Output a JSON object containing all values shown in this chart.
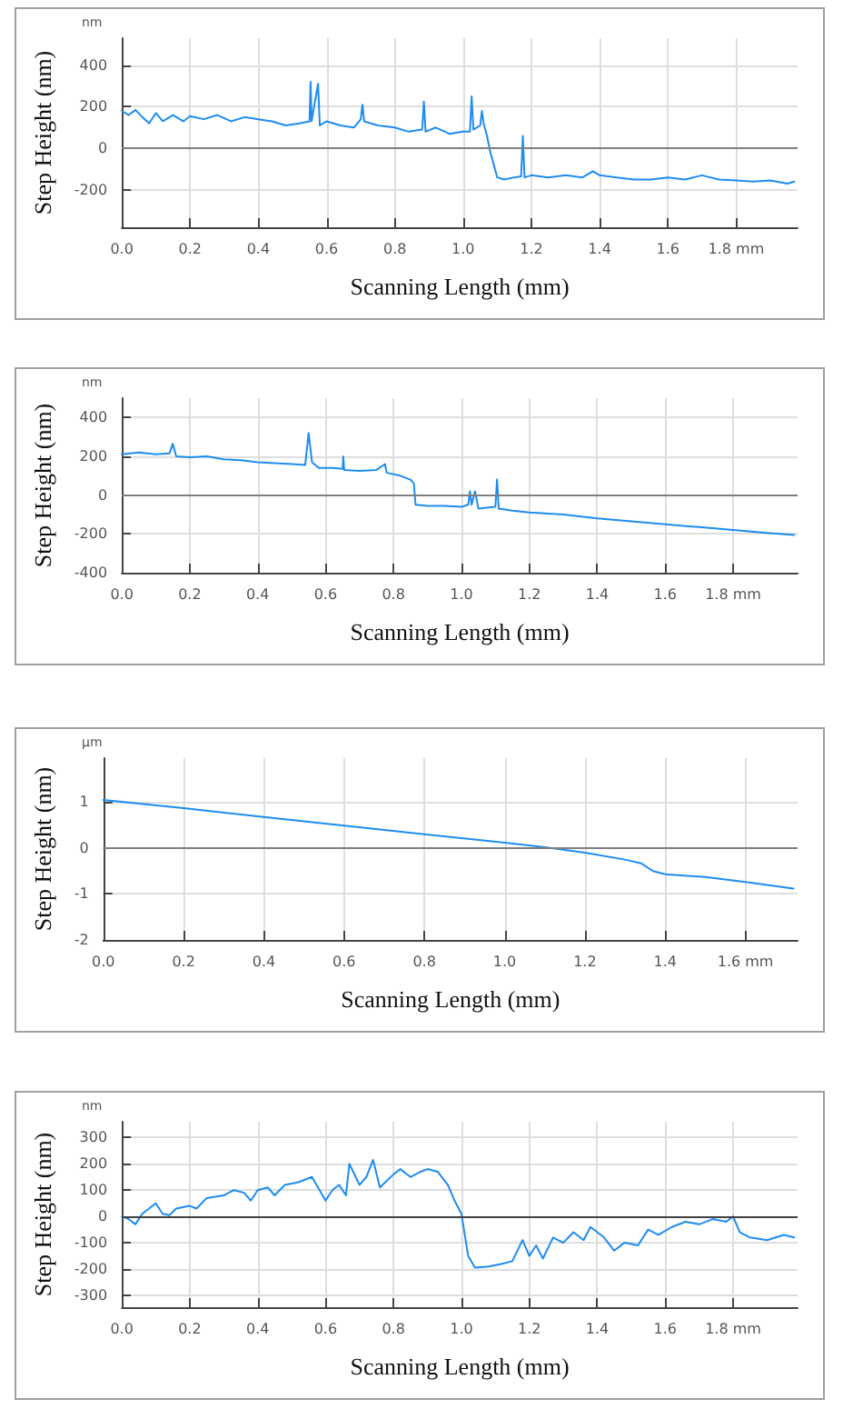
{
  "chart_data": [
    {
      "type": "line",
      "xlabel": "Scanning Length (mm)",
      "ylabel": "Step Height (nm)",
      "annotations": [
        "nm"
      ],
      "xlim": [
        0,
        1.98
      ],
      "ylim": [
        -380,
        530
      ],
      "xticks": [
        {
          "value": 0,
          "label": "0.0"
        },
        {
          "value": 0.2,
          "label": "0.2"
        },
        {
          "value": 0.4,
          "label": "0.4"
        },
        {
          "value": 0.6,
          "label": "0.6"
        },
        {
          "value": 0.8,
          "label": "0.8"
        },
        {
          "value": 1,
          "label": "1.0"
        },
        {
          "value": 1.2,
          "label": "1.2"
        },
        {
          "value": 1.4,
          "label": "1.4"
        },
        {
          "value": 1.6,
          "label": "1.6"
        },
        {
          "value": 1.8,
          "label": "1.8 mm"
        }
      ],
      "yticks": [
        -200,
        0,
        200,
        400
      ],
      "grid": true,
      "marker": "none",
      "line_style": "solid",
      "ref_lines": [
        {
          "axis": "y",
          "value": 0,
          "color": "#7f7f7f"
        }
      ],
      "series": [
        {
          "color": "#1e8cf0",
          "x": [
            0,
            0.02,
            0.04,
            0.06,
            0.08,
            0.1,
            0.12,
            0.15,
            0.18,
            0.2,
            0.24,
            0.28,
            0.32,
            0.36,
            0.4,
            0.44,
            0.48,
            0.52,
            0.55,
            0.553,
            0.556,
            0.575,
            0.58,
            0.6,
            0.64,
            0.68,
            0.7,
            0.705,
            0.71,
            0.75,
            0.8,
            0.84,
            0.88,
            0.885,
            0.89,
            0.92,
            0.96,
            1,
            1.02,
            1.025,
            1.03,
            1.05,
            1.055,
            1.06,
            1.07,
            1.08,
            1.1,
            1.12,
            1.15,
            1.17,
            1.175,
            1.18,
            1.2,
            1.25,
            1.3,
            1.35,
            1.38,
            1.4,
            1.45,
            1.5,
            1.55,
            1.6,
            1.65,
            1.7,
            1.75,
            1.8,
            1.85,
            1.9,
            1.95,
            1.97
          ],
          "values": [
            180,
            160,
            185,
            150,
            120,
            170,
            130,
            160,
            130,
            155,
            140,
            160,
            130,
            150,
            140,
            130,
            110,
            120,
            130,
            320,
            130,
            310,
            110,
            130,
            110,
            100,
            140,
            210,
            130,
            110,
            100,
            80,
            90,
            225,
            80,
            100,
            70,
            80,
            80,
            250,
            90,
            110,
            180,
            120,
            60,
            -20,
            -140,
            -150,
            -140,
            -135,
            60,
            -140,
            -130,
            -140,
            -130,
            -140,
            -110,
            -130,
            -140,
            -150,
            -150,
            -140,
            -150,
            -130,
            -150,
            -155,
            -160,
            -155,
            -170,
            -160
          ]
        }
      ]
    },
    {
      "type": "line",
      "xlabel": "Scanning Length (mm)",
      "ylabel": "Step Height (nm)",
      "annotations": [
        "nm"
      ],
      "xlim": [
        0,
        1.99
      ],
      "ylim": [
        -400,
        500
      ],
      "xticks": [
        {
          "value": 0,
          "label": "0.0"
        },
        {
          "value": 0.2,
          "label": "0.2"
        },
        {
          "value": 0.4,
          "label": "0.4"
        },
        {
          "value": 0.6,
          "label": "0.6"
        },
        {
          "value": 0.8,
          "label": "0.8"
        },
        {
          "value": 1,
          "label": "1.0"
        },
        {
          "value": 1.2,
          "label": "1.2"
        },
        {
          "value": 1.4,
          "label": "1.4"
        },
        {
          "value": 1.6,
          "label": "1.6"
        },
        {
          "value": 1.8,
          "label": "1.8 mm"
        }
      ],
      "yticks": [
        -400,
        -200,
        0,
        200,
        400
      ],
      "grid": true,
      "marker": "none",
      "line_style": "solid",
      "ref_lines": [
        {
          "axis": "y",
          "value": 0,
          "color": "#7f7f7f"
        }
      ],
      "series": [
        {
          "color": "#1e8cf0",
          "x": [
            0,
            0.05,
            0.1,
            0.14,
            0.15,
            0.16,
            0.2,
            0.25,
            0.3,
            0.35,
            0.4,
            0.45,
            0.5,
            0.54,
            0.55,
            0.56,
            0.58,
            0.62,
            0.65,
            0.652,
            0.655,
            0.7,
            0.75,
            0.775,
            0.78,
            0.82,
            0.85,
            0.86,
            0.865,
            0.9,
            0.95,
            1,
            1.02,
            1.025,
            1.03,
            1.04,
            1.05,
            1.1,
            1.105,
            1.11,
            1.15,
            1.2,
            1.3,
            1.4,
            1.5,
            1.6,
            1.7,
            1.8,
            1.9,
            1.98
          ],
          "values": [
            210,
            220,
            210,
            215,
            265,
            200,
            195,
            200,
            185,
            180,
            170,
            165,
            160,
            155,
            320,
            170,
            140,
            140,
            135,
            200,
            130,
            125,
            130,
            160,
            115,
            100,
            80,
            60,
            -50,
            -55,
            -55,
            -60,
            -50,
            20,
            -50,
            20,
            -70,
            -60,
            80,
            -70,
            -80,
            -90,
            -100,
            -120,
            -135,
            -150,
            -165,
            -180,
            -195,
            -205
          ]
        }
      ]
    },
    {
      "type": "line",
      "xlabel": "Scanning Length (mm)",
      "ylabel": "Step Height (nm)",
      "annotations": [
        "µm"
      ],
      "xlim": [
        0,
        1.73
      ],
      "ylim": [
        -2,
        1.96
      ],
      "xticks": [
        {
          "value": 0,
          "label": "0.0"
        },
        {
          "value": 0.2,
          "label": "0.2"
        },
        {
          "value": 0.4,
          "label": "0.4"
        },
        {
          "value": 0.6,
          "label": "0.6"
        },
        {
          "value": 0.8,
          "label": "0.8"
        },
        {
          "value": 1,
          "label": "1.0"
        },
        {
          "value": 1.2,
          "label": "1.2"
        },
        {
          "value": 1.4,
          "label": "1.4"
        },
        {
          "value": 1.6,
          "label": "1.6 mm"
        }
      ],
      "yticks": [
        -2,
        -1,
        0,
        1
      ],
      "grid": true,
      "marker": "none",
      "line_style": "solid",
      "ref_lines": [
        {
          "axis": "y",
          "value": 0,
          "color": "#7f7f7f"
        }
      ],
      "series": [
        {
          "color": "#1e8cf0",
          "x": [
            0,
            0.2,
            0.4,
            0.6,
            0.8,
            1,
            1.1,
            1.2,
            1.3,
            1.34,
            1.37,
            1.4,
            1.5,
            1.6,
            1.72
          ],
          "values": [
            1.05,
            0.87,
            0.68,
            0.49,
            0.3,
            0.12,
            0.02,
            -0.1,
            -0.25,
            -0.33,
            -0.5,
            -0.57,
            -0.63,
            -0.74,
            -0.88
          ]
        }
      ]
    },
    {
      "type": "line",
      "xlabel": "Scanning Length (mm)",
      "ylabel": "Step Height (nm)",
      "annotations": [
        "nm"
      ],
      "xlim": [
        0,
        1.99
      ],
      "ylim": [
        -345,
        360
      ],
      "xticks": [
        {
          "value": 0,
          "label": "0.0"
        },
        {
          "value": 0.2,
          "label": "0.2"
        },
        {
          "value": 0.4,
          "label": "0.4"
        },
        {
          "value": 0.6,
          "label": "0.6"
        },
        {
          "value": 0.8,
          "label": "0.8"
        },
        {
          "value": 1,
          "label": "1.0"
        },
        {
          "value": 1.2,
          "label": "1.2"
        },
        {
          "value": 1.4,
          "label": "1.4"
        },
        {
          "value": 1.6,
          "label": "1.6"
        },
        {
          "value": 1.8,
          "label": "1.8 mm"
        }
      ],
      "yticks": [
        -300,
        -200,
        -100,
        0,
        100,
        200,
        300
      ],
      "grid": true,
      "marker": "none",
      "line_style": "solid",
      "ref_lines": [
        {
          "axis": "y",
          "value": 0,
          "color": "#404040"
        }
      ],
      "series": [
        {
          "color": "#1e8cf0",
          "x": [
            0,
            0.02,
            0.04,
            0.06,
            0.08,
            0.1,
            0.12,
            0.14,
            0.16,
            0.2,
            0.22,
            0.25,
            0.3,
            0.33,
            0.36,
            0.38,
            0.4,
            0.43,
            0.45,
            0.48,
            0.52,
            0.56,
            0.6,
            0.62,
            0.64,
            0.66,
            0.67,
            0.7,
            0.72,
            0.74,
            0.76,
            0.8,
            0.82,
            0.85,
            0.88,
            0.9,
            0.93,
            0.96,
            0.98,
            1,
            1.02,
            1.04,
            1.08,
            1.12,
            1.15,
            1.18,
            1.2,
            1.22,
            1.24,
            1.27,
            1.3,
            1.33,
            1.36,
            1.38,
            1.42,
            1.45,
            1.48,
            1.52,
            1.55,
            1.58,
            1.62,
            1.66,
            1.7,
            1.74,
            1.78,
            1.8,
            1.82,
            1.85,
            1.9,
            1.95,
            1.98
          ],
          "values": [
            0,
            -10,
            -30,
            10,
            30,
            50,
            10,
            5,
            30,
            40,
            30,
            70,
            80,
            100,
            90,
            60,
            100,
            110,
            80,
            120,
            130,
            150,
            60,
            100,
            120,
            80,
            200,
            120,
            150,
            215,
            110,
            160,
            180,
            150,
            170,
            180,
            170,
            120,
            60,
            10,
            -150,
            -195,
            -190,
            -180,
            -170,
            -90,
            -150,
            -110,
            -160,
            -80,
            -100,
            -60,
            -90,
            -40,
            -80,
            -130,
            -100,
            -110,
            -50,
            -70,
            -40,
            -20,
            -30,
            -10,
            -20,
            0,
            -60,
            -80,
            -90,
            -70,
            -80
          ]
        }
      ]
    }
  ]
}
